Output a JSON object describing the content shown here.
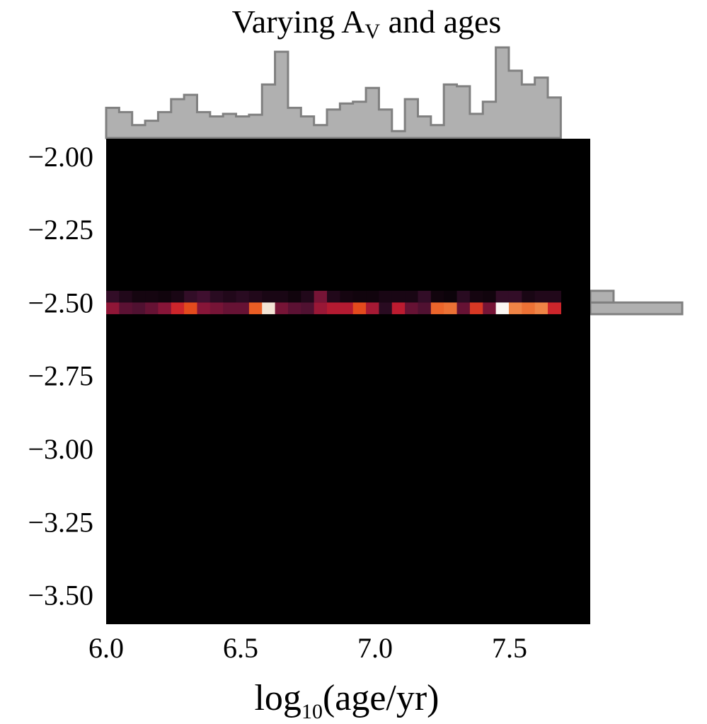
{
  "chart_data": {
    "type": "heatmap",
    "title": {
      "main": "Varying A",
      "sub": "V",
      "rest": " and ages"
    },
    "xlabel": {
      "pre": "log",
      "sub": "10",
      "post": "(age/yr)"
    },
    "ylabel": "",
    "xlim": [
      6.0,
      7.8
    ],
    "ylim": [
      -3.6,
      -1.94
    ],
    "x_ticks": [
      "6.0",
      "6.5",
      "7.0",
      "7.5"
    ],
    "y_ticks": [
      "−2.00",
      "−2.25",
      "−2.50",
      "−2.75",
      "−3.00",
      "−3.25",
      "−3.50"
    ],
    "x_tick_values": [
      6.0,
      6.5,
      7.0,
      7.5
    ],
    "y_tick_values": [
      -2.0,
      -2.25,
      -2.5,
      -2.75,
      -3.0,
      -3.25,
      -3.5
    ],
    "grid": false,
    "colormap": [
      "#000000",
      "#3b0f2f",
      "#8a1538",
      "#c81d2e",
      "#e8521a",
      "#f08a4b",
      "#f3e9dc",
      "#ffffff"
    ],
    "background_color": "#000000",
    "histogram_color": "#b0b0b0",
    "histogram_edge_color": "#808080",
    "x_bins": {
      "start": 6.0,
      "width": 0.0483,
      "count": 35
    },
    "y_rows": [
      {
        "y_low": -2.5,
        "y_high": -2.46,
        "intensity": [
          0.12,
          0.08,
          0.05,
          0.05,
          0.04,
          0.06,
          0.12,
          0.15,
          0.1,
          0.08,
          0.1,
          0.08,
          0.06,
          0.06,
          0.04,
          0.08,
          0.25,
          0.08,
          0.05,
          0.04,
          0.04,
          0.06,
          0.06,
          0.06,
          0.12,
          0.04,
          0.03,
          0.1,
          0.05,
          0.04,
          0.12,
          0.12,
          0.06,
          0.08,
          0.08
        ]
      },
      {
        "y_low": -2.54,
        "y_high": -2.5,
        "intensity": [
          0.3,
          0.2,
          0.18,
          0.22,
          0.28,
          0.45,
          0.55,
          0.28,
          0.25,
          0.22,
          0.22,
          0.6,
          0.85,
          0.25,
          0.2,
          0.18,
          0.32,
          0.38,
          0.38,
          0.55,
          0.35,
          0.1,
          0.4,
          0.22,
          0.18,
          0.62,
          0.65,
          0.22,
          0.5,
          0.25,
          0.95,
          0.7,
          0.65,
          0.7,
          0.45
        ]
      }
    ],
    "top_histogram": [
      0.35,
      0.3,
      0.15,
      0.2,
      0.3,
      0.45,
      0.5,
      0.3,
      0.25,
      0.28,
      0.25,
      0.27,
      0.62,
      1.0,
      0.35,
      0.25,
      0.15,
      0.33,
      0.4,
      0.42,
      0.58,
      0.33,
      0.08,
      0.45,
      0.25,
      0.15,
      0.62,
      0.6,
      0.28,
      0.42,
      1.05,
      0.78,
      0.62,
      0.7,
      0.47
    ],
    "right_histogram": [
      {
        "y_low": -2.54,
        "y_high": -2.5,
        "value": 0.71
      },
      {
        "y_low": -2.5,
        "y_high": -2.46,
        "value": 0.18
      }
    ]
  }
}
